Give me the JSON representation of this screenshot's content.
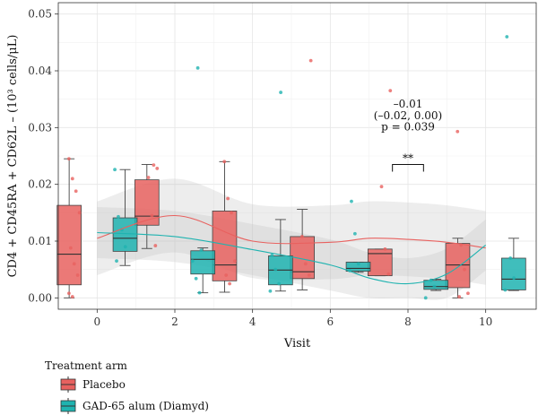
{
  "chart_data": {
    "type": "box",
    "xlabel": "Visit",
    "ylabel": "CD4 + CD45RA + CD62L – (10³ cells/μL)",
    "categories": [
      "0",
      "2",
      "4",
      "6",
      "8",
      "10"
    ],
    "ylim": [
      -0.002,
      0.052
    ],
    "yticks": [
      "0.00",
      "0.01",
      "0.02",
      "0.03",
      "0.04",
      "0.05"
    ],
    "grid": true,
    "legend": {
      "title": "Treatment arm",
      "position": "bottom-left",
      "entries": [
        "Placebo",
        "GAD-65 alum (Diamyd)"
      ]
    },
    "series": [
      {
        "name": "Placebo",
        "color": "#E8615F",
        "boxes": [
          {
            "visit": 0,
            "q1": 0.0023,
            "median": 0.0077,
            "q3": 0.0163,
            "whisker_low": 0.0,
            "whisker_high": 0.0245
          },
          {
            "visit": 2,
            "q1": 0.0128,
            "median": 0.0144,
            "q3": 0.0208,
            "whisker_low": 0.0087,
            "whisker_high": 0.0235
          },
          {
            "visit": 4,
            "q1": 0.003,
            "median": 0.0058,
            "q3": 0.0153,
            "whisker_low": 0.001,
            "whisker_high": 0.024
          },
          {
            "visit": 6,
            "q1": 0.0034,
            "median": 0.0046,
            "q3": 0.0108,
            "whisker_low": 0.0014,
            "whisker_high": 0.0156
          },
          {
            "visit": 8,
            "q1": 0.0039,
            "median": 0.0078,
            "q3": 0.0086,
            "whisker_low": 0.0039,
            "whisker_high": 0.0086
          },
          {
            "visit": 10,
            "q1": 0.0018,
            "median": 0.0058,
            "q3": 0.0096,
            "whisker_low": 0.0,
            "whisker_high": 0.0105
          }
        ],
        "points": [
          [
            0,
            0.0245
          ],
          [
            0,
            0.021
          ],
          [
            0,
            0.0188
          ],
          [
            0,
            0.015
          ],
          [
            0,
            0.0088
          ],
          [
            0,
            0.006
          ],
          [
            0,
            0.004
          ],
          [
            0,
            0.0008
          ],
          [
            0,
            0.0002
          ],
          [
            2,
            0.0234
          ],
          [
            2,
            0.0228
          ],
          [
            2,
            0.0212
          ],
          [
            2,
            0.0145
          ],
          [
            2,
            0.0092
          ],
          [
            4,
            0.024
          ],
          [
            4,
            0.0175
          ],
          [
            4,
            0.015
          ],
          [
            4,
            0.0065
          ],
          [
            4,
            0.004
          ],
          [
            4,
            0.0025
          ],
          [
            6,
            0.0418
          ],
          [
            6,
            0.0108
          ],
          [
            6,
            0.006
          ],
          [
            6,
            0.004
          ],
          [
            8,
            0.0365
          ],
          [
            8,
            0.0196
          ],
          [
            8,
            0.0086
          ],
          [
            8,
            0.0042
          ],
          [
            10,
            0.0293
          ],
          [
            10,
            0.0093
          ],
          [
            10,
            0.005
          ],
          [
            10,
            0.0008
          ],
          [
            10,
            0.0002
          ]
        ],
        "smooth": [
          [
            0,
            0.0105
          ],
          [
            2,
            0.0145
          ],
          [
            4,
            0.01
          ],
          [
            6,
            0.0098
          ],
          [
            7,
            0.0105
          ],
          [
            8,
            0.0103
          ],
          [
            9,
            0.0098
          ],
          [
            10,
            0.0088
          ]
        ]
      },
      {
        "name": "GAD-65 alum (Diamyd)",
        "color": "#1FB3B0",
        "boxes": [
          {
            "visit": 0,
            "q1": 0.0082,
            "median": 0.0105,
            "q3": 0.0141,
            "whisker_low": 0.0057,
            "whisker_high": 0.0226
          },
          {
            "visit": 2,
            "q1": 0.0042,
            "median": 0.0068,
            "q3": 0.0083,
            "whisker_low": 0.0009,
            "whisker_high": 0.0088
          },
          {
            "visit": 4,
            "q1": 0.0023,
            "median": 0.0049,
            "q3": 0.0074,
            "whisker_low": 0.0012,
            "whisker_high": 0.0138
          },
          {
            "visit": 6,
            "q1": 0.0047,
            "median": 0.0052,
            "q3": 0.0063,
            "whisker_low": 0.0045,
            "whisker_high": 0.0063
          },
          {
            "visit": 8,
            "q1": 0.0015,
            "median": 0.002,
            "q3": 0.0031,
            "whisker_low": 0.0013,
            "whisker_high": 0.0033
          },
          {
            "visit": 10,
            "q1": 0.0014,
            "median": 0.0033,
            "q3": 0.007,
            "whisker_low": 0.0013,
            "whisker_high": 0.0105
          }
        ],
        "points": [
          [
            0,
            0.0226
          ],
          [
            0,
            0.0143
          ],
          [
            0,
            0.012
          ],
          [
            0,
            0.009
          ],
          [
            0,
            0.0065
          ],
          [
            2,
            0.0405
          ],
          [
            2,
            0.0084
          ],
          [
            2,
            0.0065
          ],
          [
            2,
            0.0034
          ],
          [
            2,
            0.0009
          ],
          [
            4,
            0.0362
          ],
          [
            4,
            0.0075
          ],
          [
            4,
            0.005
          ],
          [
            4,
            0.0025
          ],
          [
            4,
            0.0012
          ],
          [
            6,
            0.017
          ],
          [
            6,
            0.0113
          ],
          [
            6,
            0.006
          ],
          [
            6,
            0.0048
          ],
          [
            8,
            0.0031
          ],
          [
            8,
            0.002
          ],
          [
            8,
            0.0
          ],
          [
            10,
            0.046
          ],
          [
            10,
            0.007
          ],
          [
            10,
            0.0035
          ],
          [
            10,
            0.0014
          ]
        ],
        "smooth": [
          [
            0,
            0.0115
          ],
          [
            2,
            0.0108
          ],
          [
            4,
            0.0085
          ],
          [
            6,
            0.0058
          ],
          [
            7,
            0.0035
          ],
          [
            8,
            0.0025
          ],
          [
            9,
            0.0042
          ],
          [
            10,
            0.0093
          ]
        ]
      }
    ],
    "annotation": {
      "lines": [
        "–0.01",
        "(–0.02, 0.00)",
        "p = 0.039"
      ],
      "significance": "**",
      "bracket_visits": [
        7.6,
        8.4
      ]
    }
  }
}
